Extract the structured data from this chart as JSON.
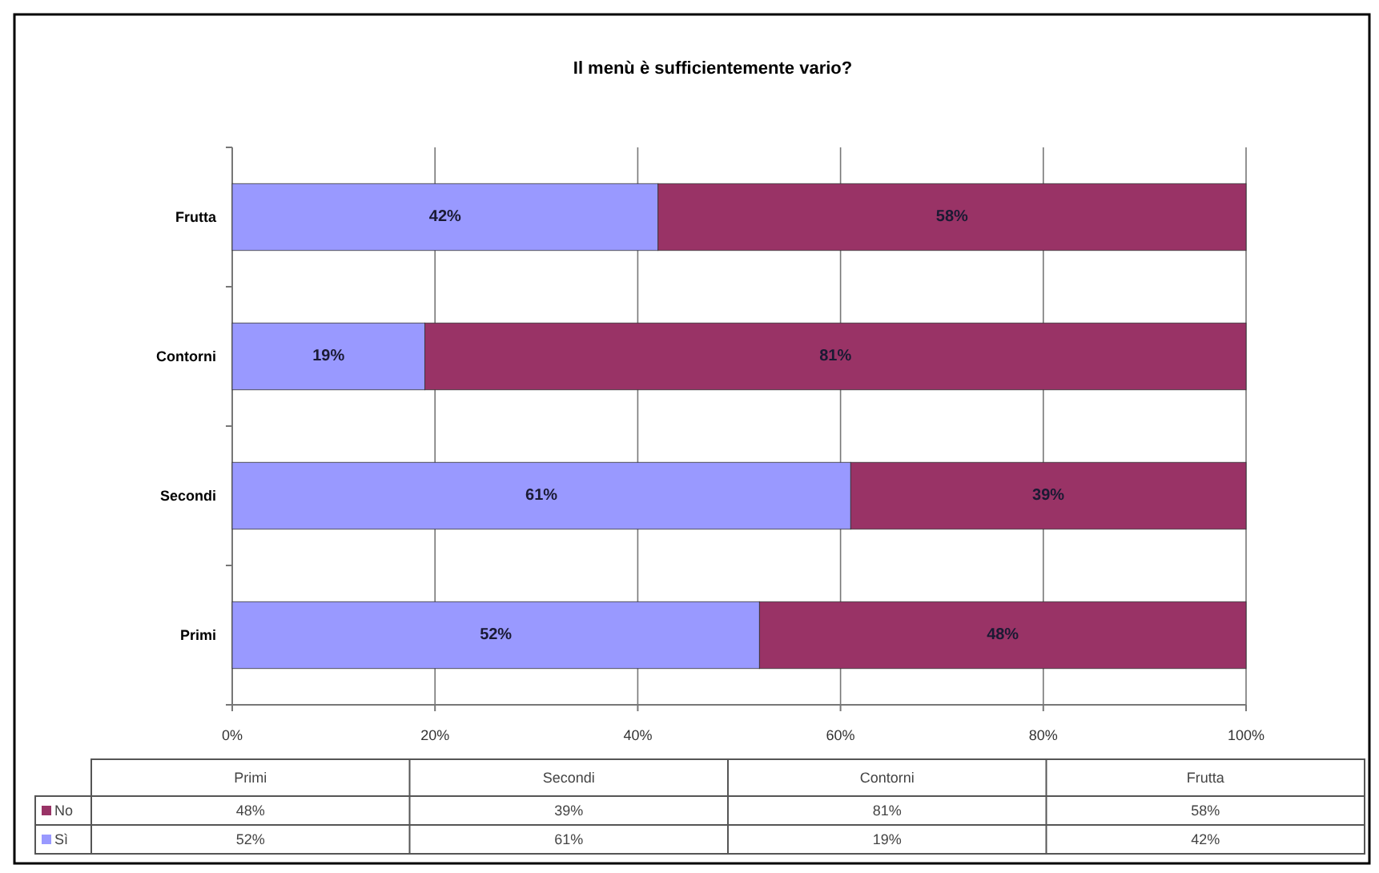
{
  "chart_data": {
    "type": "bar",
    "orientation": "horizontal",
    "stacked": true,
    "title": "Il menù è sufficientemente vario?",
    "categories": [
      "Frutta",
      "Contorni",
      "Secondi",
      "Primi"
    ],
    "series": [
      {
        "name": "Sì",
        "color": "#9999ff",
        "values": [
          42,
          19,
          61,
          52
        ],
        "value_labels": [
          "42%",
          "19%",
          "61%",
          "52%"
        ]
      },
      {
        "name": "No",
        "color": "#993366",
        "values": [
          58,
          81,
          39,
          48
        ],
        "value_labels": [
          "58%",
          "81%",
          "39%",
          "48%"
        ]
      }
    ],
    "xlim": [
      0,
      100
    ],
    "xticks": [
      {
        "value": 0,
        "label": "0%"
      },
      {
        "value": 20,
        "label": "20%"
      },
      {
        "value": 40,
        "label": "40%"
      },
      {
        "value": 60,
        "label": "60%"
      },
      {
        "value": 80,
        "label": "80%"
      },
      {
        "value": 100,
        "label": "100%"
      }
    ],
    "grid": "x",
    "legend": "bottom left"
  }
}
